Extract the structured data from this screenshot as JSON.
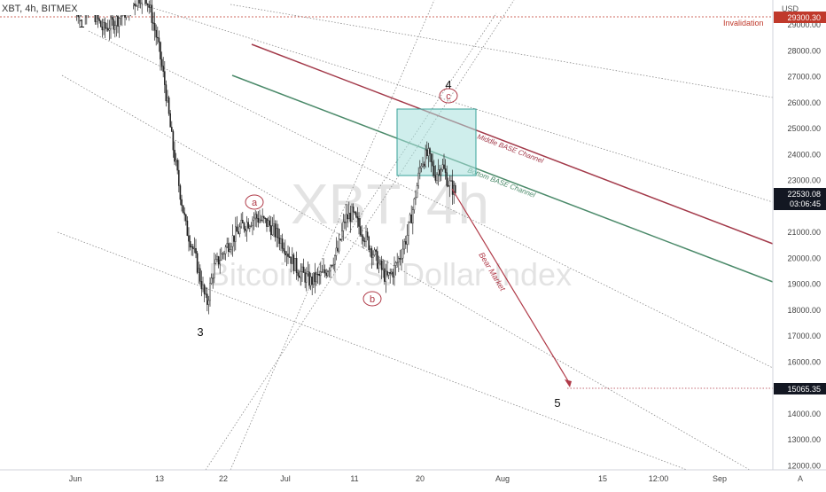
{
  "header": {
    "symbol_label": "XBT, 4h, BITMEX",
    "currency": "USD"
  },
  "watermark": {
    "ticker": "XBT, 4h",
    "description": "Bitcoin / U.S. Dollar Index"
  },
  "price_axis": {
    "ticks": [
      "29000.00",
      "28000.00",
      "27000.00",
      "26000.00",
      "25000.00",
      "24000.00",
      "23000.00",
      "22000.00",
      "21000.00",
      "20000.00",
      "19000.00",
      "18000.00",
      "17000.00",
      "16000.00",
      "15000.00",
      "14000.00",
      "13000.00",
      "12000.00"
    ],
    "last_price": "22530.08",
    "countdown": "03:06:45",
    "invalidation_price": "29300.30",
    "target_price": "15065.35"
  },
  "time_axis": {
    "ticks": [
      "Jun",
      "13",
      "22",
      "Jul",
      "11",
      "20",
      "Aug",
      "15",
      "12:00",
      "Sep"
    ],
    "corner_label": "A"
  },
  "annotations": {
    "invalidation_label": "Invalidation",
    "middle_channel_label": "Middle BASE Channel",
    "bottom_channel_label": "Bottom BASE Channel",
    "bear_market_label": "Bear Market",
    "waves": [
      "1",
      "3",
      "4",
      "5"
    ],
    "subwaves": [
      "a",
      "b",
      "c"
    ]
  },
  "colors": {
    "candle": "#222222",
    "middle_channel": "#a33a4a",
    "bottom_channel": "#4b8a6a",
    "arrow": "#b03a48",
    "invalidation": "#c0392b",
    "box_fill": "#a8e0dc",
    "box_stroke": "#3aa39a",
    "last_price_bg": "#131722",
    "target_bg": "#131722"
  },
  "chart_data": {
    "type": "candlestick",
    "title": "XBT, 4h, BITMEX",
    "ylabel": "USD",
    "ylim": [
      12000,
      30000
    ],
    "xlim": [
      "2021-05-31",
      "2021-09-04"
    ],
    "points": [
      {
        "t": "2021-05-31",
        "c": 29500
      },
      {
        "t": "2021-06-02",
        "c": 29800
      },
      {
        "t": "2021-06-04",
        "c": 28800
      },
      {
        "t": "2021-06-06",
        "c": 29200
      },
      {
        "t": "2021-06-08",
        "c": 29700
      },
      {
        "t": "2021-06-10",
        "c": 30300
      },
      {
        "t": "2021-06-11",
        "c": 29400
      },
      {
        "t": "2021-06-12",
        "c": 28200
      },
      {
        "t": "2021-06-13",
        "c": 26600
      },
      {
        "t": "2021-06-14",
        "c": 24500
      },
      {
        "t": "2021-06-15",
        "c": 22800
      },
      {
        "t": "2021-06-16",
        "c": 21200
      },
      {
        "t": "2021-06-17",
        "c": 20400
      },
      {
        "t": "2021-06-18",
        "c": 19300
      },
      {
        "t": "2021-06-19",
        "c": 18200
      },
      {
        "t": "2021-06-20",
        "c": 19600
      },
      {
        "t": "2021-06-22",
        "c": 20500
      },
      {
        "t": "2021-06-24",
        "c": 21200
      },
      {
        "t": "2021-06-26",
        "c": 21600
      },
      {
        "t": "2021-06-28",
        "c": 21300
      },
      {
        "t": "2021-06-30",
        "c": 20600
      },
      {
        "t": "2021-07-02",
        "c": 19600
      },
      {
        "t": "2021-07-04",
        "c": 19100
      },
      {
        "t": "2021-07-06",
        "c": 19400
      },
      {
        "t": "2021-07-08",
        "c": 20300
      },
      {
        "t": "2021-07-09",
        "c": 21500
      },
      {
        "t": "2021-07-10",
        "c": 21700
      },
      {
        "t": "2021-07-12",
        "c": 20800
      },
      {
        "t": "2021-07-14",
        "c": 19700
      },
      {
        "t": "2021-07-15",
        "c": 19200
      },
      {
        "t": "2021-07-16",
        "c": 19500
      },
      {
        "t": "2021-07-17",
        "c": 20100
      },
      {
        "t": "2021-07-18",
        "c": 20900
      },
      {
        "t": "2021-07-19",
        "c": 22100
      },
      {
        "t": "2021-07-20",
        "c": 23700
      },
      {
        "t": "2021-07-21",
        "c": 24000
      },
      {
        "t": "2021-07-22",
        "c": 23200
      },
      {
        "t": "2021-07-23",
        "c": 23600
      },
      {
        "t": "2021-07-24",
        "c": 22900
      },
      {
        "t": "2021-07-25",
        "c": 22530
      }
    ],
    "grid": false
  }
}
